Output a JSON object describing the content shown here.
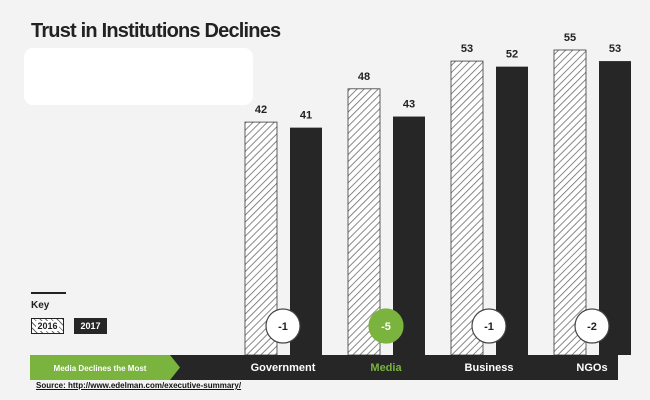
{
  "title": "Trust in Institutions Declines",
  "key": {
    "title": "Key",
    "items": [
      "2016",
      "2017"
    ]
  },
  "banner": {
    "label": "Media Declines the Most",
    "color": "#7ab33e"
  },
  "source": "Source: http://www.edelman.com/executive-summary/",
  "colors": {
    "bar_2017": "#262626",
    "bar_2016_hatch": "#6a6a6a",
    "highlight": "#7ab33e",
    "strip": "#262626"
  },
  "chart_data": {
    "type": "bar",
    "categories": [
      "Government",
      "Media",
      "Business",
      "NGOs"
    ],
    "series": [
      {
        "name": "2016",
        "values": [
          42,
          48,
          53,
          55
        ]
      },
      {
        "name": "2017",
        "values": [
          41,
          43,
          52,
          53
        ]
      }
    ],
    "changes": [
      "-1",
      "-5",
      "-1",
      "-2"
    ],
    "highlight_category": "Media",
    "ylim": [
      0,
      60
    ]
  }
}
